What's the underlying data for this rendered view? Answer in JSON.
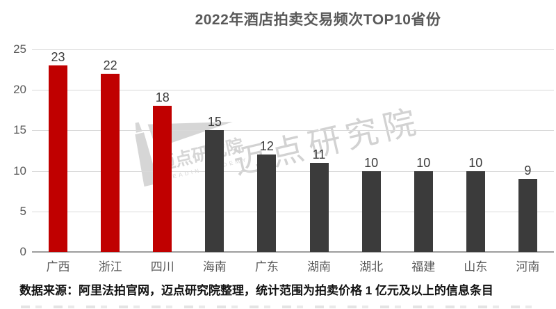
{
  "title": "2022年酒店拍卖交易频次TOP10省份",
  "footer_note": "数据来源：阿里法拍官网，迈点研究院整理，统计范围为拍卖价格 1 亿元及以上的信息条目",
  "watermark": {
    "big_text": "迈点研究院",
    "logo_text": "迈点研究院",
    "logo_subtext": "MEADIN ACADEMY"
  },
  "colors": {
    "highlight_bar": "#C00000",
    "normal_bar": "#3B3B3B",
    "gridline": "#D9D9D9",
    "axis_line": "#9D9D9D",
    "axis_label": "#595959",
    "value_label": "#3A3A3A",
    "title": "#595959",
    "watermark": "#CBCBCB",
    "footer": "#111111"
  },
  "chart_data": {
    "type": "bar",
    "title": "2022年酒店拍卖交易频次TOP10省份",
    "categories": [
      "广西",
      "浙江",
      "四川",
      "海南",
      "广东",
      "湖南",
      "湖北",
      "福建",
      "山东",
      "河南"
    ],
    "values": [
      23,
      22,
      18,
      15,
      12,
      11,
      10,
      10,
      10,
      9
    ],
    "highlighted_categories": [
      "广西",
      "浙江",
      "四川"
    ],
    "highlight_count": 3,
    "xlabel": "",
    "ylabel": "",
    "ylim": [
      0,
      25
    ],
    "yticks": [
      0,
      5,
      10,
      15,
      20,
      25
    ],
    "grid": true,
    "legend": false,
    "value_labels_shown": true
  }
}
